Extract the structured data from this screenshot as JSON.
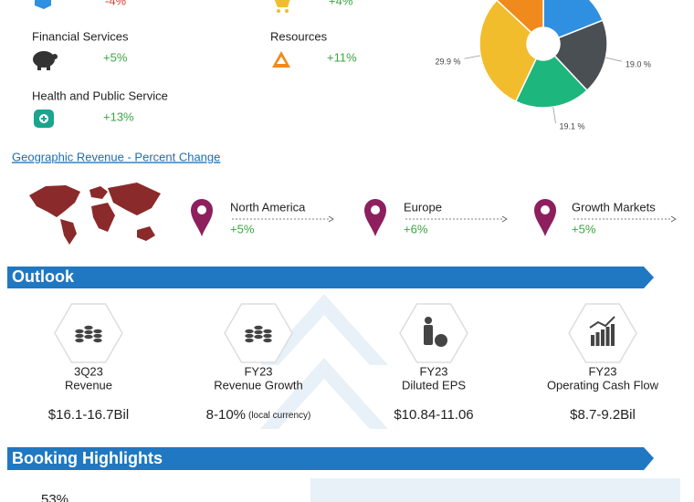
{
  "industries": [
    {
      "change": "-4%"
    },
    {
      "change": "+4%"
    },
    {
      "name": "Financial Services",
      "change": "+5%"
    },
    {
      "name": "Resources",
      "change": "+11%"
    },
    {
      "name": "Health and Public Service",
      "change": "+13%"
    }
  ],
  "revenue_pie": {
    "type": "pie",
    "values": [
      19,
      19.0,
      19.1,
      29.9,
      13
    ],
    "value_labels": [
      null,
      "19.0 %",
      "19.1 %",
      "29.9 %",
      null
    ],
    "colors": [
      "#2f8fe0",
      "#4a4f54",
      "#1db67c",
      "#f2bd2c",
      "#f08a1c"
    ]
  },
  "geographic": {
    "title": "Geographic Revenue - Percent Change",
    "regions": [
      {
        "name": "North America",
        "change": "+5%"
      },
      {
        "name": "Europe",
        "change": "+6%"
      },
      {
        "name": "Growth Markets",
        "change": "+5%"
      }
    ]
  },
  "outlook": {
    "title": "Outlook",
    "items": [
      {
        "period": "3Q23",
        "metric": "Revenue",
        "value": "$16.1-16.7Bil"
      },
      {
        "period": "FY23",
        "metric": "Revenue Growth",
        "value": "8-10%",
        "note": "(local currency)"
      },
      {
        "period": "FY23",
        "metric": "Diluted EPS",
        "value": "$10.84-11.06"
      },
      {
        "period": "FY23",
        "metric": "Operating Cash Flow",
        "value": "$8.7-9.2Bil"
      }
    ]
  },
  "booking": {
    "title": "Booking Highlights",
    "first_value": "53%"
  }
}
